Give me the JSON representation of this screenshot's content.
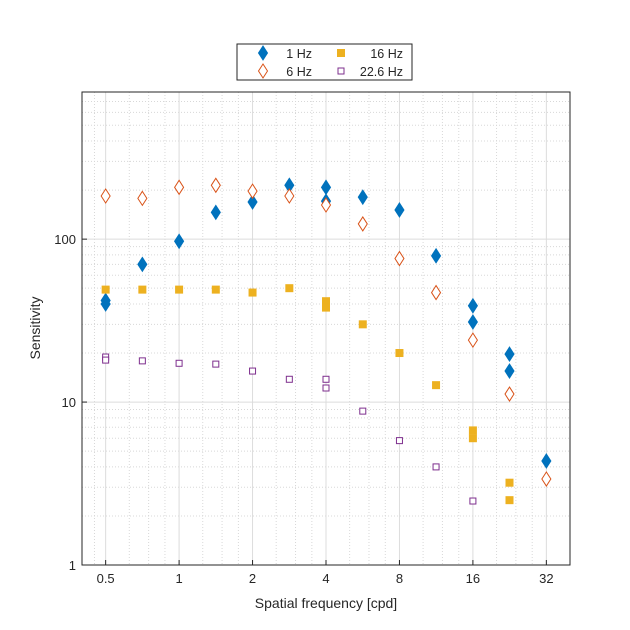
{
  "chart_data": {
    "type": "scatter",
    "title": "",
    "xlabel": "Spatial frequency [cpd]",
    "ylabel": "Sensitivity",
    "xscale": "log2",
    "yscale": "log10",
    "xlim": [
      0.4,
      40
    ],
    "ylim": [
      1,
      800
    ],
    "xticks": [
      0.5,
      1,
      2,
      4,
      8,
      16,
      32
    ],
    "xtick_labels": [
      "0.5",
      "1",
      "2",
      "4",
      "8",
      "16",
      "32"
    ],
    "yticks": [
      1,
      10,
      100
    ],
    "ytick_labels": [
      "1",
      "10",
      "100"
    ],
    "grid": true,
    "legend_position": "top-center, outside plot",
    "series": [
      {
        "name": "1 Hz",
        "marker": "diamond-filled",
        "color": "#0072BD",
        "x": [
          0.5,
          0.5,
          0.707,
          1,
          1.414,
          2,
          2.83,
          4,
          4,
          5.66,
          8,
          11.3,
          16,
          16,
          22.6,
          22.6,
          32
        ],
        "y": [
          42,
          40,
          70,
          97,
          146,
          169,
          214,
          208,
          171,
          181,
          151,
          79,
          39,
          31,
          19.7,
          15.5,
          4.35
        ]
      },
      {
        "name": "6 Hz",
        "marker": "diamond-open",
        "color": "#D95319",
        "x": [
          0.5,
          0.707,
          1,
          1.414,
          2,
          2.83,
          4,
          5.66,
          8,
          11.3,
          16,
          22.6,
          32
        ],
        "y": [
          184,
          178,
          208,
          214,
          197,
          184,
          162,
          124,
          76,
          47,
          24,
          11.2,
          3.37
        ]
      },
      {
        "name": "16 Hz",
        "marker": "square-filled",
        "color": "#EDB120",
        "x": [
          0.5,
          0.707,
          1,
          1.414,
          2,
          2.83,
          4,
          4,
          5.66,
          8,
          11.3,
          16,
          16,
          22.6,
          22.6
        ],
        "y": [
          49,
          49,
          49,
          49,
          47,
          50,
          41.6,
          38,
          30,
          20,
          12.7,
          6.7,
          6,
          3.2,
          2.5
        ]
      },
      {
        "name": "22.6 Hz",
        "marker": "square-open",
        "color": "#7E2F8E",
        "x": [
          0.5,
          0.5,
          0.707,
          1,
          1.414,
          2,
          2.83,
          4,
          4,
          5.66,
          8,
          11.3,
          16
        ],
        "y": [
          18.9,
          18.1,
          17.9,
          17.3,
          17.1,
          15.5,
          13.8,
          13.8,
          12.2,
          8.8,
          5.8,
          4.0,
          2.47
        ]
      }
    ]
  }
}
